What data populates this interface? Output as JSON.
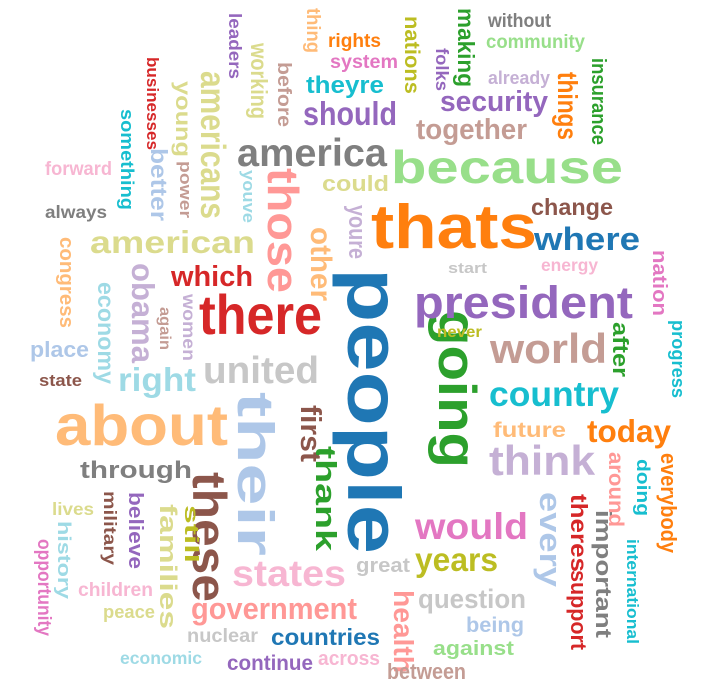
{
  "words": [
    {
      "text": "people",
      "color": "#1f77b4"
    },
    {
      "text": "their",
      "color": "#aec7e8"
    },
    {
      "text": "thats",
      "color": "#ff7f0e"
    },
    {
      "text": "because",
      "color": "#98df8a"
    },
    {
      "text": "going",
      "color": "#2ca02c"
    },
    {
      "text": "about",
      "color": "#ffbb78"
    },
    {
      "text": "there",
      "color": "#d62728"
    },
    {
      "text": "these",
      "color": "#8c564b"
    },
    {
      "text": "those",
      "color": "#ff9896"
    },
    {
      "text": "president",
      "color": "#9467bd"
    },
    {
      "text": "world",
      "color": "#c49c94"
    },
    {
      "text": "america",
      "color": "#7f7f7f"
    },
    {
      "text": "think",
      "color": "#c5b0d5"
    },
    {
      "text": "american",
      "color": "#dbdb8d"
    },
    {
      "text": "states",
      "color": "#f7b6d2"
    },
    {
      "text": "united",
      "color": "#c7c7c7"
    },
    {
      "text": "country",
      "color": "#17becf"
    },
    {
      "text": "would",
      "color": "#e377c2"
    },
    {
      "text": "years",
      "color": "#bcbd22"
    },
    {
      "text": "where",
      "color": "#1f77b4"
    },
    {
      "text": "government",
      "color": "#ff9896"
    },
    {
      "text": "today",
      "color": "#ff7f0e"
    },
    {
      "text": "every",
      "color": "#aec7e8"
    },
    {
      "text": "right",
      "color": "#9edae5"
    },
    {
      "text": "americans",
      "color": "#dbdb8d"
    },
    {
      "text": "security",
      "color": "#9467bd"
    },
    {
      "text": "should",
      "color": "#9467bd"
    },
    {
      "text": "together",
      "color": "#c49c94"
    },
    {
      "text": "obama",
      "color": "#c5b0d5"
    },
    {
      "text": "which",
      "color": "#d62728"
    },
    {
      "text": "through",
      "color": "#7f7f7f"
    },
    {
      "text": "question",
      "color": "#c7c7c7"
    },
    {
      "text": "countries",
      "color": "#1f77b4"
    },
    {
      "text": "things",
      "color": "#ff7f0e"
    },
    {
      "text": "thank",
      "color": "#2ca02c"
    },
    {
      "text": "first",
      "color": "#8c564b"
    },
    {
      "text": "other",
      "color": "#ffbb78"
    },
    {
      "text": "health",
      "color": "#ff9896"
    },
    {
      "text": "future",
      "color": "#ffbb78"
    },
    {
      "text": "families",
      "color": "#dbdb8d"
    },
    {
      "text": "theres",
      "color": "#d62728"
    },
    {
      "text": "support",
      "color": "#d62728"
    },
    {
      "text": "important",
      "color": "#7f7f7f"
    },
    {
      "text": "change",
      "color": "#8c564b"
    },
    {
      "text": "could",
      "color": "#dbdb8d"
    },
    {
      "text": "theyre",
      "color": "#17becf"
    },
    {
      "text": "economy",
      "color": "#9edae5"
    },
    {
      "text": "after",
      "color": "#2ca02c"
    },
    {
      "text": "around",
      "color": "#ff9896"
    },
    {
      "text": "everybody",
      "color": "#ff7f0e"
    },
    {
      "text": "doing",
      "color": "#17becf"
    },
    {
      "text": "community",
      "color": "#98df8a"
    },
    {
      "text": "insurance",
      "color": "#2ca02c"
    },
    {
      "text": "making",
      "color": "#2ca02c"
    },
    {
      "text": "nations",
      "color": "#bcbd22"
    },
    {
      "text": "system",
      "color": "#e377c2"
    },
    {
      "text": "rights",
      "color": "#ff7f0e"
    },
    {
      "text": "young",
      "color": "#dbdb8d"
    },
    {
      "text": "working",
      "color": "#dbdb8d"
    },
    {
      "text": "before",
      "color": "#c49c94"
    },
    {
      "text": "thing",
      "color": "#ffbb78"
    },
    {
      "text": "something",
      "color": "#17becf"
    },
    {
      "text": "better",
      "color": "#aec7e8"
    },
    {
      "text": "businesses",
      "color": "#d62728"
    },
    {
      "text": "leaders",
      "color": "#9467bd"
    },
    {
      "text": "forward",
      "color": "#f7b6d2"
    },
    {
      "text": "always",
      "color": "#7f7f7f"
    },
    {
      "text": "power",
      "color": "#c49c94"
    },
    {
      "text": "youve",
      "color": "#9edae5"
    },
    {
      "text": "youre",
      "color": "#c5b0d5"
    },
    {
      "text": "congress",
      "color": "#ffbb78"
    },
    {
      "text": "place",
      "color": "#aec7e8"
    },
    {
      "text": "women",
      "color": "#c5b0d5"
    },
    {
      "text": "again",
      "color": "#c49c94"
    },
    {
      "text": "state",
      "color": "#8c564b"
    },
    {
      "text": "start",
      "color": "#c7c7c7"
    },
    {
      "text": "energy",
      "color": "#f7b6d2"
    },
    {
      "text": "never",
      "color": "#bcbd22"
    },
    {
      "text": "nation",
      "color": "#e377c2"
    },
    {
      "text": "progress",
      "color": "#17becf"
    },
    {
      "text": "without",
      "color": "#7f7f7f"
    },
    {
      "text": "folks",
      "color": "#9467bd"
    },
    {
      "text": "already",
      "color": "#c5b0d5"
    },
    {
      "text": "military",
      "color": "#8c564b"
    },
    {
      "text": "believe",
      "color": "#9467bd"
    },
    {
      "text": "still",
      "color": "#bcbd22"
    },
    {
      "text": "lives",
      "color": "#dbdb8d"
    },
    {
      "text": "history",
      "color": "#9edae5"
    },
    {
      "text": "opportunity",
      "color": "#e377c2"
    },
    {
      "text": "children",
      "color": "#f7b6d2"
    },
    {
      "text": "peace",
      "color": "#dbdb8d"
    },
    {
      "text": "great",
      "color": "#c7c7c7"
    },
    {
      "text": "nuclear",
      "color": "#c7c7c7"
    },
    {
      "text": "economic",
      "color": "#9edae5"
    },
    {
      "text": "continue",
      "color": "#9467bd"
    },
    {
      "text": "across",
      "color": "#f7b6d2"
    },
    {
      "text": "between",
      "color": "#c49c94"
    },
    {
      "text": "against",
      "color": "#98df8a"
    },
    {
      "text": "being",
      "color": "#aec7e8"
    },
    {
      "text": "international",
      "color": "#17becf"
    }
  ]
}
